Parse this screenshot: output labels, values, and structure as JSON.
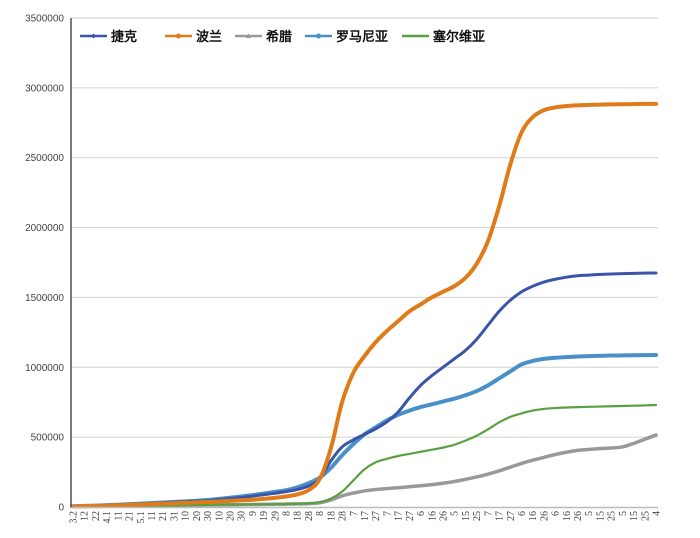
{
  "chart_data": {
    "type": "line",
    "title": "",
    "xlabel": "",
    "ylabel": "",
    "ylim": [
      0,
      3500000
    ],
    "yticks": [
      0,
      500000,
      1000000,
      1500000,
      2000000,
      2500000,
      3000000,
      3500000
    ],
    "ytick_labels": [
      "0",
      "500000",
      "1000000",
      "1500000",
      "2000000",
      "2500000",
      "3000000",
      "3500000"
    ],
    "grid": true,
    "legend_position": "top-left inside",
    "categories": [
      "3.2",
      "12",
      "22",
      "4.1",
      "11",
      "21",
      "5.1",
      "11",
      "21",
      "31",
      "10",
      "20",
      "30",
      "10",
      "20",
      "30",
      "9",
      "19",
      "29",
      "8",
      "18",
      "28",
      "8",
      "18",
      "28",
      "7",
      "17",
      "27",
      "7",
      "17",
      "27",
      "6",
      "16",
      "26",
      "5",
      "15",
      "25",
      "7",
      "17",
      "27",
      "6",
      "16",
      "26",
      "6",
      "16",
      "26",
      "5",
      "15",
      "25",
      "5",
      "15",
      "25",
      "4"
    ],
    "series": [
      {
        "name": "捷克",
        "color": "#3A55A8",
        "marker": "diamond",
        "values": [
          5000,
          8000,
          10000,
          12000,
          15000,
          18000,
          22000,
          26000,
          30000,
          34000,
          38000,
          42000,
          46000,
          52000,
          60000,
          68000,
          78000,
          88000,
          98000,
          110000,
          125000,
          150000,
          200000,
          330000,
          430000,
          480000,
          520000,
          560000,
          610000,
          680000,
          780000,
          870000,
          940000,
          1000000,
          1060000,
          1120000,
          1200000,
          1300000,
          1400000,
          1480000,
          1540000,
          1580000,
          1610000,
          1630000,
          1645000,
          1655000,
          1660000,
          1665000,
          1668000,
          1670000,
          1672000,
          1674000,
          1675000
        ]
      },
      {
        "name": "波兰",
        "color": "#E07B1A",
        "marker": "circle",
        "values": [
          4000,
          6000,
          8000,
          10000,
          12000,
          15000,
          18000,
          21000,
          24000,
          27000,
          30000,
          33000,
          36000,
          40000,
          44000,
          48000,
          52000,
          58000,
          65000,
          75000,
          90000,
          120000,
          200000,
          420000,
          750000,
          960000,
          1080000,
          1180000,
          1260000,
          1330000,
          1400000,
          1450000,
          1500000,
          1540000,
          1580000,
          1640000,
          1740000,
          1900000,
          2150000,
          2450000,
          2680000,
          2790000,
          2840000,
          2860000,
          2870000,
          2875000,
          2878000,
          2880000,
          2882000,
          2883000,
          2884000,
          2885000,
          2885000
        ]
      },
      {
        "name": "希腊",
        "color": "#999999",
        "marker": "triangle",
        "values": [
          2000,
          3000,
          4000,
          5000,
          6000,
          7000,
          8000,
          9000,
          10000,
          11000,
          12000,
          13000,
          14000,
          15000,
          16000,
          17000,
          18000,
          19000,
          20000,
          21000,
          22000,
          24000,
          30000,
          50000,
          80000,
          100000,
          115000,
          125000,
          132000,
          138000,
          145000,
          152000,
          160000,
          170000,
          182000,
          198000,
          215000,
          235000,
          258000,
          285000,
          312000,
          335000,
          355000,
          375000,
          392000,
          405000,
          412000,
          418000,
          422000,
          430000,
          455000,
          485000,
          515000
        ]
      },
      {
        "name": "罗马尼亚",
        "color": "#4A90C8",
        "marker": "circle",
        "values": [
          5000,
          8000,
          10000,
          13000,
          16000,
          20000,
          24000,
          28000,
          32000,
          36000,
          40000,
          45000,
          50000,
          58000,
          66000,
          75000,
          85000,
          96000,
          108000,
          120000,
          140000,
          170000,
          210000,
          280000,
          370000,
          450000,
          520000,
          570000,
          620000,
          660000,
          690000,
          715000,
          735000,
          755000,
          775000,
          800000,
          830000,
          870000,
          920000,
          970000,
          1020000,
          1045000,
          1060000,
          1068000,
          1073000,
          1077000,
          1080000,
          1082000,
          1084000,
          1085000,
          1086000,
          1087000,
          1088000
        ]
      },
      {
        "name": "塞尔维亚",
        "color": "#5AA040",
        "marker": "none",
        "values": [
          3000,
          4000,
          5000,
          6000,
          7000,
          8000,
          9000,
          10000,
          11000,
          12000,
          13000,
          14000,
          15000,
          16000,
          17000,
          18000,
          19000,
          20000,
          21000,
          22000,
          23000,
          25000,
          35000,
          60000,
          110000,
          190000,
          270000,
          320000,
          345000,
          365000,
          380000,
          395000,
          410000,
          425000,
          445000,
          475000,
          510000,
          555000,
          605000,
          645000,
          670000,
          690000,
          702000,
          708000,
          712000,
          715000,
          717000,
          719000,
          721000,
          723000,
          725000,
          727000,
          730000
        ]
      }
    ]
  }
}
